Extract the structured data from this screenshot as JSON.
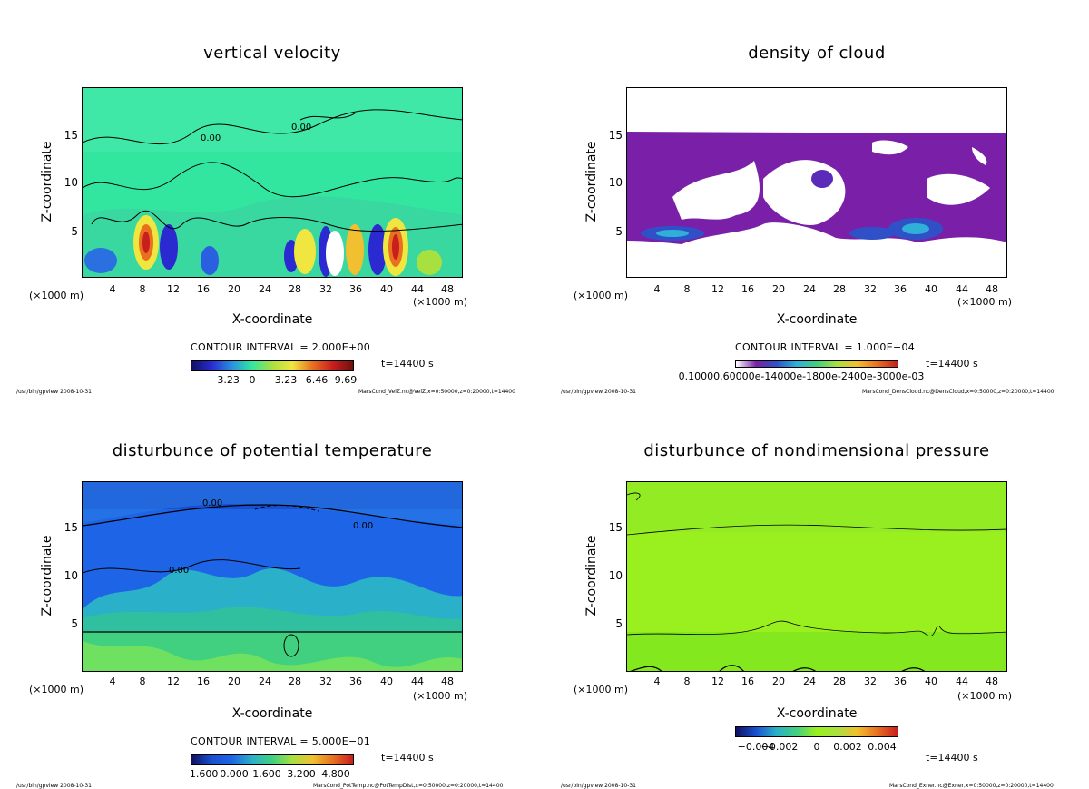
{
  "chart_data": [
    {
      "type": "heatmap",
      "title": "vertical velocity",
      "xlabel": "X-coordinate",
      "ylabel": "Z-coordinate",
      "x_unit": "(×1000 m)",
      "xlim": [
        0,
        50
      ],
      "ylim": [
        0,
        20
      ],
      "xticks": [
        "4",
        "8",
        "12",
        "16",
        "20",
        "24",
        "28",
        "32",
        "36",
        "40",
        "44",
        "48"
      ],
      "yticks": [
        "5",
        "10",
        "15"
      ],
      "contour_interval": "CONTOUR INTERVAL = 2.000E+00",
      "colorbar_labels": [
        "−3.23",
        "0",
        "3.23",
        "6.46",
        "9.69"
      ],
      "contour_labels": [
        "0.00",
        "0.00"
      ],
      "time": "t=14400 s",
      "footer_left": "/usr/bin/gpview  2008-10-31",
      "footer_right": "MarsCond_VelZ.nc@VelZ,x=0:50000,z=0:20000,t=14400",
      "colors": {
        "background": "#33e6a0",
        "low": "#2a2ad0",
        "high": "#c81e1e",
        "mid": "#f0e640"
      }
    },
    {
      "type": "heatmap",
      "title": "density of cloud",
      "xlabel": "X-coordinate",
      "ylabel": "Z-coordinate",
      "x_unit": "(×1000 m)",
      "xlim": [
        0,
        50
      ],
      "ylim": [
        0,
        20
      ],
      "xticks": [
        "4",
        "8",
        "12",
        "16",
        "20",
        "24",
        "28",
        "32",
        "36",
        "40",
        "44",
        "48"
      ],
      "yticks": [
        "5",
        "10",
        "15"
      ],
      "contour_interval": "CONTOUR INTERVAL = 1.000E−04",
      "colorbar_labels": [
        "0.1000E-03"
      ],
      "colorbar_overlap_text": "0.10000.60000e-14000e-1800e-2400e-3000e-03",
      "time": "t=14400 s",
      "footer_left": "/usr/bin/gpview  2008-10-31",
      "footer_right": "MarsCond_DensCloud.nc@DensCloud,x=0:50000,z=0:20000,t=14400",
      "colors": {
        "cloud": "#7a1fa8",
        "dense": "#2040c0"
      }
    },
    {
      "type": "heatmap",
      "title": "disturbunce of potential temperature",
      "xlabel": "X-coordinate",
      "ylabel": "Z-coordinate",
      "x_unit": "(×1000 m)",
      "xlim": [
        0,
        50
      ],
      "ylim": [
        0,
        20
      ],
      "xticks": [
        "4",
        "8",
        "12",
        "16",
        "20",
        "24",
        "28",
        "32",
        "36",
        "40",
        "44",
        "48"
      ],
      "yticks": [
        "5",
        "10",
        "15"
      ],
      "contour_interval": "CONTOUR INTERVAL = 5.000E−01",
      "colorbar_labels": [
        "−1.600",
        "0.000",
        "1.600",
        "3.200",
        "4.800"
      ],
      "contour_labels": [
        "0.00",
        "0.00",
        "0.00"
      ],
      "time": "t=14400 s",
      "footer_left": "/usr/bin/gpview  2008-10-31",
      "footer_right": "MarsCond_PotTemp.nc@PotTempDist,x=0:50000,z=0:20000,t=14400",
      "colors": {
        "upper": "#1e64e6",
        "lower": "#40d080"
      }
    },
    {
      "type": "heatmap",
      "title": "disturbunce of nondimensional pressure",
      "xlabel": "X-coordinate",
      "ylabel": "Z-coordinate",
      "x_unit": "(×1000 m)",
      "xlim": [
        0,
        50
      ],
      "ylim": [
        0,
        20
      ],
      "xticks": [
        "4",
        "8",
        "12",
        "16",
        "20",
        "24",
        "28",
        "32",
        "36",
        "40",
        "44",
        "48"
      ],
      "yticks": [
        "5",
        "10",
        "15"
      ],
      "contour_interval": "",
      "colorbar_labels": [
        "−0.004",
        "−0.002",
        "0",
        "0.002",
        "0.004"
      ],
      "time": "t=14400 s",
      "footer_left": "/usr/bin/gpview  2008-10-31",
      "footer_right": "MarsCond_Exner.nc@Exner,x=0:50000,z=0:20000,t=14400",
      "colors": {
        "field": "#9af01e",
        "lower": "#84e81e"
      }
    }
  ]
}
